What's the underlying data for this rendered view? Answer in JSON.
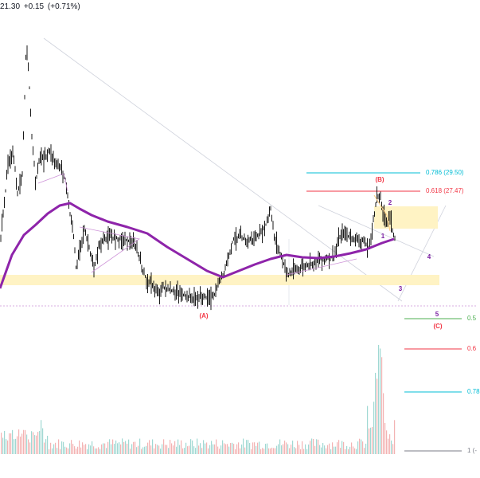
{
  "header": {
    "last_price": "21.30",
    "change": "+0.15",
    "change_pct": "(+0.71%)"
  },
  "chart_data": {
    "type": "candlestick",
    "price_scale": {
      "ylim": [
        18.4,
        41.0
      ]
    },
    "fib_upper": [
      {
        "label": "0.786 (29.50)",
        "value": 29.5,
        "color": "#00bcd4"
      },
      {
        "label": "0.618 (27.47)",
        "value": 27.47,
        "color": "#f23645"
      }
    ],
    "fib_lower": [
      {
        "label": "0.5",
        "color": "#4caf50"
      },
      {
        "label": "0.6",
        "color": "#f23645"
      },
      {
        "label": "0.78",
        "color": "#00bcd4"
      },
      {
        "label": "1 (-",
        "color": "#787b86"
      }
    ],
    "wave_labels": [
      {
        "text": "(A)",
        "color": "#f23645"
      },
      {
        "text": "(B)",
        "color": "#f23645"
      },
      {
        "text": "(C)",
        "color": "#f23645"
      },
      {
        "text": "1",
        "color": "#7b1fa2"
      },
      {
        "text": "2",
        "color": "#7b1fa2"
      },
      {
        "text": "3",
        "color": "#7b1fa2"
      },
      {
        "text": "4",
        "color": "#7b1fa2"
      },
      {
        "text": "5",
        "color": "#7b1fa2"
      }
    ],
    "moving_average_color": "#8e24aa",
    "zone_color": "#fff3c4",
    "volume_colors": [
      "#ef9a9a",
      "#80cbc4"
    ]
  }
}
